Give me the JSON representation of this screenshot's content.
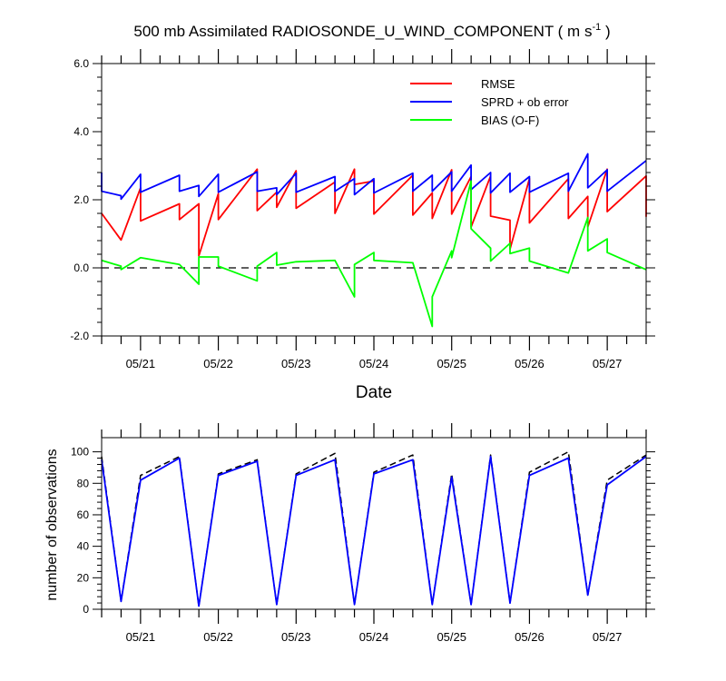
{
  "chart_data": [
    {
      "type": "line",
      "title": "500 mb Assimilated RADIOSONDE_U_WIND_COMPONENT ( m s",
      "title_units_exp": "-1",
      "title_tail": " )",
      "xlabel": "Date",
      "ylabel": "",
      "xlim": [
        0,
        7
      ],
      "ylim": [
        -2.0,
        6.0
      ],
      "yticks": [
        "-2.0",
        "0.0",
        "2.0",
        "4.0",
        "6.0"
      ],
      "ytick_values": [
        -2,
        0,
        2,
        4,
        6
      ],
      "date_labels": [
        "05/21",
        "05/22",
        "05/23",
        "05/24",
        "05/25",
        "05/26",
        "05/27"
      ],
      "date_positions": [
        0.5,
        1.5,
        2.5,
        3.5,
        4.5,
        5.5,
        6.5
      ],
      "reference_line": 0.0,
      "legend": [
        "RMSE",
        "SPRD + ob error",
        "BIAS (O-F)"
      ],
      "series": [
        {
          "name": "RMSE",
          "color": "#ff0000",
          "points": [
            [
              0,
              1.6
            ],
            [
              0.25,
              0.82
            ],
            [
              0.25,
              0.82
            ],
            [
              0.5,
              2.35
            ],
            [
              0.5,
              1.38
            ],
            [
              1.0,
              1.88
            ],
            [
              1.0,
              1.42
            ],
            [
              1.25,
              1.88
            ],
            [
              1.25,
              0.35
            ],
            [
              1.5,
              2.18
            ],
            [
              1.5,
              1.42
            ],
            [
              2.0,
              2.9
            ],
            [
              2.0,
              1.68
            ],
            [
              2.25,
              2.22
            ],
            [
              2.25,
              1.78
            ],
            [
              2.5,
              2.85
            ],
            [
              2.5,
              1.75
            ],
            [
              3.0,
              2.52
            ],
            [
              3.0,
              1.6
            ],
            [
              3.25,
              2.9
            ],
            [
              3.25,
              2.45
            ],
            [
              3.5,
              2.55
            ],
            [
              3.5,
              1.58
            ],
            [
              4.0,
              2.72
            ],
            [
              4.0,
              1.55
            ],
            [
              4.25,
              2.2
            ],
            [
              4.25,
              1.45
            ],
            [
              4.5,
              2.88
            ],
            [
              4.5,
              1.58
            ],
            [
              4.75,
              2.68
            ],
            [
              4.75,
              1.2
            ],
            [
              5.0,
              2.7
            ],
            [
              5.0,
              1.52
            ],
            [
              5.25,
              1.4
            ],
            [
              5.25,
              0.55
            ],
            [
              5.5,
              2.62
            ],
            [
              5.5,
              1.32
            ],
            [
              6.0,
              2.62
            ],
            [
              6.0,
              1.45
            ],
            [
              6.25,
              2.1
            ],
            [
              6.25,
              1.2
            ],
            [
              6.5,
              2.9
            ],
            [
              6.5,
              1.65
            ],
            [
              7.0,
              2.7
            ],
            [
              7.0,
              1.5
            ]
          ]
        },
        {
          "name": "SPRD + ob error",
          "color": "#0000ff",
          "points": [
            [
              0,
              2.8
            ],
            [
              0,
              2.25
            ],
            [
              0.25,
              2.12
            ],
            [
              0.25,
              2.02
            ],
            [
              0.5,
              2.75
            ],
            [
              0.5,
              2.22
            ],
            [
              1.0,
              2.72
            ],
            [
              1.0,
              2.25
            ],
            [
              1.25,
              2.42
            ],
            [
              1.25,
              2.1
            ],
            [
              1.5,
              2.75
            ],
            [
              1.5,
              2.22
            ],
            [
              2.0,
              2.82
            ],
            [
              2.0,
              2.25
            ],
            [
              2.25,
              2.35
            ],
            [
              2.25,
              2.15
            ],
            [
              2.5,
              2.78
            ],
            [
              2.5,
              2.22
            ],
            [
              3.0,
              2.68
            ],
            [
              3.0,
              2.25
            ],
            [
              3.25,
              2.62
            ],
            [
              3.25,
              2.15
            ],
            [
              3.5,
              2.62
            ],
            [
              3.5,
              2.2
            ],
            [
              4.0,
              2.78
            ],
            [
              4.0,
              2.25
            ],
            [
              4.25,
              2.72
            ],
            [
              4.25,
              2.25
            ],
            [
              4.5,
              2.82
            ],
            [
              4.5,
              2.25
            ],
            [
              4.75,
              3.02
            ],
            [
              4.75,
              2.3
            ],
            [
              5.0,
              2.8
            ],
            [
              5.0,
              2.2
            ],
            [
              5.25,
              2.78
            ],
            [
              5.25,
              2.22
            ],
            [
              5.5,
              2.68
            ],
            [
              5.5,
              2.22
            ],
            [
              6.0,
              2.78
            ],
            [
              6.0,
              2.25
            ],
            [
              6.25,
              3.35
            ],
            [
              6.25,
              2.35
            ],
            [
              6.5,
              2.88
            ],
            [
              6.5,
              2.25
            ],
            [
              7.0,
              3.15
            ]
          ]
        },
        {
          "name": "BIAS (O-F)",
          "color": "#00ff00",
          "points": [
            [
              0,
              0.22
            ],
            [
              0.25,
              0.05
            ],
            [
              0.25,
              -0.05
            ],
            [
              0.5,
              0.3
            ],
            [
              1.0,
              0.1
            ],
            [
              1.25,
              -0.48
            ],
            [
              1.25,
              0.32
            ],
            [
              1.5,
              0.32
            ],
            [
              1.5,
              0.05
            ],
            [
              2.0,
              -0.38
            ],
            [
              2.0,
              0.05
            ],
            [
              2.25,
              0.45
            ],
            [
              2.25,
              0.08
            ],
            [
              2.5,
              0.18
            ],
            [
              3.0,
              0.22
            ],
            [
              3.25,
              -0.85
            ],
            [
              3.25,
              0.1
            ],
            [
              3.5,
              0.45
            ],
            [
              3.5,
              0.22
            ],
            [
              4.0,
              0.15
            ],
            [
              4.25,
              -1.72
            ],
            [
              4.25,
              -0.85
            ],
            [
              4.5,
              0.5
            ],
            [
              4.5,
              0.3
            ],
            [
              4.75,
              2.55
            ],
            [
              4.75,
              1.15
            ],
            [
              5.0,
              0.58
            ],
            [
              5.0,
              0.2
            ],
            [
              5.25,
              0.72
            ],
            [
              5.25,
              0.42
            ],
            [
              5.5,
              0.58
            ],
            [
              5.5,
              0.2
            ],
            [
              6.0,
              -0.15
            ],
            [
              6.25,
              1.48
            ],
            [
              6.25,
              0.5
            ],
            [
              6.5,
              0.85
            ],
            [
              6.5,
              0.45
            ],
            [
              7.0,
              -0.05
            ]
          ]
        }
      ]
    },
    {
      "type": "line",
      "title": "",
      "xlabel": "",
      "ylabel": "number of observations",
      "xlim": [
        0,
        7
      ],
      "ylim": [
        0,
        109
      ],
      "yticks": [
        "0",
        "20",
        "40",
        "60",
        "80",
        "100"
      ],
      "ytick_values": [
        0,
        20,
        40,
        60,
        80,
        100
      ],
      "date_labels": [
        "05/21",
        "05/22",
        "05/23",
        "05/24",
        "05/25",
        "05/26",
        "05/27"
      ],
      "date_positions": [
        0.5,
        1.5,
        2.5,
        3.5,
        4.5,
        5.5,
        6.5
      ],
      "series": [
        {
          "name": "observations (dashed)",
          "color": "#000000",
          "style": "dashed",
          "points": [
            [
              0,
              97
            ],
            [
              0.25,
              5
            ],
            [
              0.5,
              85
            ],
            [
              1.0,
              97
            ],
            [
              1.25,
              2
            ],
            [
              1.5,
              86
            ],
            [
              2.0,
              95
            ],
            [
              2.25,
              3
            ],
            [
              2.5,
              86
            ],
            [
              3.0,
              99
            ],
            [
              3.25,
              3
            ],
            [
              3.5,
              87
            ],
            [
              4.0,
              98
            ],
            [
              4.25,
              3
            ],
            [
              4.5,
              86
            ],
            [
              4.75,
              3
            ],
            [
              5.0,
              98
            ],
            [
              5.25,
              4
            ],
            [
              5.5,
              87
            ],
            [
              6.0,
              100
            ],
            [
              6.25,
              9
            ],
            [
              6.5,
              82
            ],
            [
              7.0,
              98
            ]
          ]
        },
        {
          "name": "observations",
          "color": "#0000ff",
          "style": "solid",
          "points": [
            [
              0,
              95
            ],
            [
              0.25,
              5
            ],
            [
              0.5,
              82
            ],
            [
              1.0,
              96
            ],
            [
              1.25,
              2
            ],
            [
              1.5,
              85
            ],
            [
              2.0,
              94
            ],
            [
              2.25,
              3
            ],
            [
              2.5,
              85
            ],
            [
              3.0,
              95
            ],
            [
              3.25,
              3
            ],
            [
              3.5,
              86
            ],
            [
              4.0,
              95
            ],
            [
              4.25,
              3
            ],
            [
              4.5,
              84
            ],
            [
              4.75,
              3
            ],
            [
              5.0,
              97
            ],
            [
              5.25,
              4
            ],
            [
              5.5,
              85
            ],
            [
              6.0,
              96
            ],
            [
              6.25,
              9
            ],
            [
              6.5,
              79
            ],
            [
              7.0,
              97
            ]
          ]
        }
      ]
    }
  ]
}
